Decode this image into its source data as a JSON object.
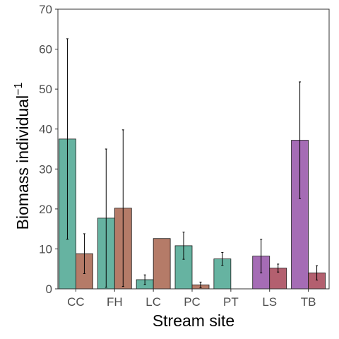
{
  "chart_data": {
    "type": "bar",
    "xlabel": "Stream site",
    "ylabel": "Biomass individual",
    "ylabel_superscript": "−1",
    "ylim": [
      0,
      70
    ],
    "yticks": [
      0,
      10,
      20,
      30,
      40,
      50,
      60,
      70
    ],
    "categories": [
      "CC",
      "FH",
      "LC",
      "PC",
      "PT",
      "LS",
      "TB"
    ],
    "colors": {
      "a_left": "#66b3a1",
      "a_right": "#b57b68",
      "b_left": "#a56cb5",
      "b_right": "#b3606f"
    },
    "bars": [
      {
        "category": "CC",
        "slot": "left",
        "color_key": "a_left",
        "value": 37.5,
        "err_low": 12.4,
        "err_high": 62.6
      },
      {
        "category": "CC",
        "slot": "right",
        "color_key": "a_right",
        "value": 8.8,
        "err_low": 3.8,
        "err_high": 13.8
      },
      {
        "category": "FH",
        "slot": "left",
        "color_key": "a_left",
        "value": 17.7,
        "err_low": 0.4,
        "err_high": 35.0
      },
      {
        "category": "FH",
        "slot": "right",
        "color_key": "a_right",
        "value": 20.2,
        "err_low": 0.6,
        "err_high": 39.8
      },
      {
        "category": "LC",
        "slot": "left",
        "color_key": "a_left",
        "value": 2.3,
        "err_low": 1.1,
        "err_high": 3.5
      },
      {
        "category": "LC",
        "slot": "right",
        "color_key": "a_right",
        "value": 12.6,
        "err_low": null,
        "err_high": null
      },
      {
        "category": "PC",
        "slot": "left",
        "color_key": "a_left",
        "value": 10.8,
        "err_low": 7.4,
        "err_high": 14.2
      },
      {
        "category": "PC",
        "slot": "right",
        "color_key": "a_right",
        "value": 1.0,
        "err_low": 0.3,
        "err_high": 1.7
      },
      {
        "category": "PT",
        "slot": "left",
        "color_key": "a_left",
        "value": 7.5,
        "err_low": 5.9,
        "err_high": 9.1
      },
      {
        "category": "LS",
        "slot": "left",
        "color_key": "b_left",
        "value": 8.2,
        "err_low": 4.0,
        "err_high": 12.4
      },
      {
        "category": "LS",
        "slot": "right",
        "color_key": "b_right",
        "value": 5.2,
        "err_low": 4.2,
        "err_high": 6.2
      },
      {
        "category": "TB",
        "slot": "left",
        "color_key": "b_left",
        "value": 37.2,
        "err_low": 22.6,
        "err_high": 51.8
      },
      {
        "category": "TB",
        "slot": "right",
        "color_key": "b_right",
        "value": 4.0,
        "err_low": 2.2,
        "err_high": 5.8
      }
    ],
    "grid": false,
    "legend": "none"
  }
}
